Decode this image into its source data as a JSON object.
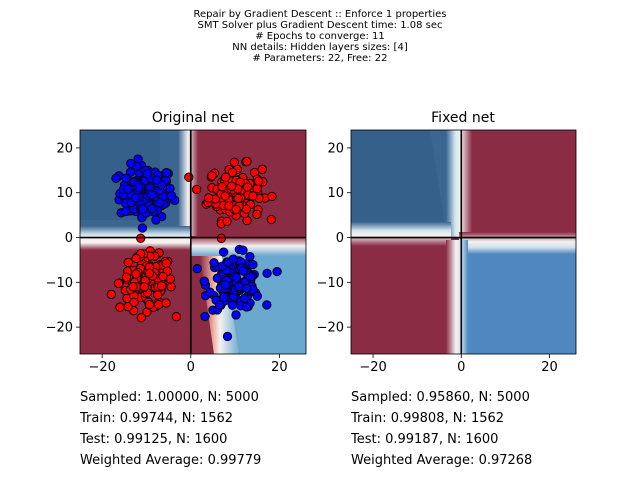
{
  "suptitle": {
    "lines": [
      "Repair by Gradient Descent :: Enforce 1 properties",
      "SMT Solver plus Gradient Descent time: 1.08 sec",
      "# Epochs to converge: 11",
      "NN details: Hidden layers sizes: [4]",
      "# Parameters: 22, Free: 22"
    ]
  },
  "chart_data": [
    {
      "type": "scatter",
      "title": "Original net",
      "xlim": [
        -25,
        26
      ],
      "ylim": [
        -26,
        24
      ],
      "xticks": [
        -20,
        0,
        20
      ],
      "yticks": [
        -20,
        -10,
        0,
        10,
        20
      ],
      "grid": false,
      "axes_lines": {
        "x": 0,
        "y": 0,
        "color": "#000000"
      },
      "background": "decision-surface",
      "background_colors": {
        "class_red": "#8b2c45",
        "class_blue_dark": "#3a6690",
        "class_blue_light": "#6aa8d0",
        "boundary": "#f4f2f0"
      },
      "series": [
        {
          "color": "#0000ff",
          "edge": "#000000",
          "cluster": {
            "cx": -10,
            "cy": 10,
            "sx": 3,
            "sy": 3,
            "n": 130
          }
        },
        {
          "color": "#ff0000",
          "edge": "#000000",
          "cluster": {
            "cx": 10,
            "cy": 10,
            "sx": 3,
            "sy": 3,
            "n": 150
          }
        },
        {
          "color": "#ff0000",
          "edge": "#000000",
          "cluster": {
            "cx": -10,
            "cy": -10,
            "sx": 3,
            "sy": 3,
            "n": 150
          }
        },
        {
          "color": "#0000ff",
          "edge": "#000000",
          "cluster": {
            "cx": 10,
            "cy": -10,
            "sx": 3,
            "sy": 3,
            "n": 130
          }
        }
      ],
      "stats": [
        "Sampled: 1.00000, N: 5000",
        "Train: 0.99744, N: 1562",
        "Test: 0.99125, N: 1600",
        "Weighted Average: 0.99779"
      ]
    },
    {
      "type": "heatmap",
      "title": "Fixed net",
      "xlim": [
        -25,
        26
      ],
      "ylim": [
        -26,
        24
      ],
      "xticks": [
        -20,
        0,
        20
      ],
      "yticks": [
        -20,
        -10,
        0,
        10,
        20
      ],
      "grid": false,
      "axes_lines": {
        "x": 0,
        "y": 0,
        "color": "#000000"
      },
      "background": "decision-surface",
      "background_colors": {
        "class_red": "#8b2c45",
        "class_blue_dark": "#3a6690",
        "class_blue_light": "#4f88bf",
        "boundary": "#f4f2f0"
      },
      "stats": [
        "Sampled: 0.95860, N: 5000",
        "Train: 0.99808, N: 1562",
        "Test: 0.99187, N: 1600",
        "Weighted Average: 0.97268"
      ]
    }
  ]
}
